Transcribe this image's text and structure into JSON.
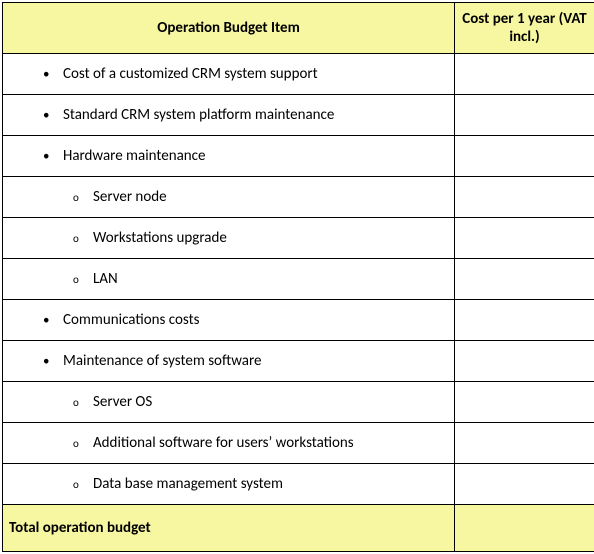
{
  "colors": {
    "header_bg": "#f7f6a1",
    "border": "#000000",
    "row_bg": "#ffffff",
    "text": "#000000"
  },
  "header": {
    "item": "Operation Budget Item",
    "cost": "Cost per 1 year (VAT incl.)"
  },
  "rows": [
    {
      "level": 1,
      "bullet": "disc",
      "label": "Cost of a customized CRM system support",
      "cost": ""
    },
    {
      "level": 1,
      "bullet": "disc",
      "label": "Standard CRM system platform maintenance",
      "cost": ""
    },
    {
      "level": 1,
      "bullet": "disc",
      "label": "Hardware maintenance",
      "cost": ""
    },
    {
      "level": 2,
      "bullet": "circle",
      "label": "Server node",
      "cost": ""
    },
    {
      "level": 2,
      "bullet": "circle",
      "label": "Workstations upgrade",
      "cost": ""
    },
    {
      "level": 2,
      "bullet": "circle",
      "label": "LAN",
      "cost": ""
    },
    {
      "level": 1,
      "bullet": "disc",
      "label": "Communications costs",
      "cost": ""
    },
    {
      "level": 1,
      "bullet": "disc",
      "label": "Maintenance of system software",
      "cost": ""
    },
    {
      "level": 2,
      "bullet": "circle",
      "label": "Server OS",
      "cost": ""
    },
    {
      "level": 2,
      "bullet": "circle",
      "label": "Additional software for users’ workstations",
      "cost": ""
    },
    {
      "level": 2,
      "bullet": "circle",
      "label": "Data base management system",
      "cost": ""
    }
  ],
  "total": {
    "label": "Total operation budget",
    "cost": ""
  },
  "bullets": {
    "disc": "•",
    "circle": "o"
  }
}
